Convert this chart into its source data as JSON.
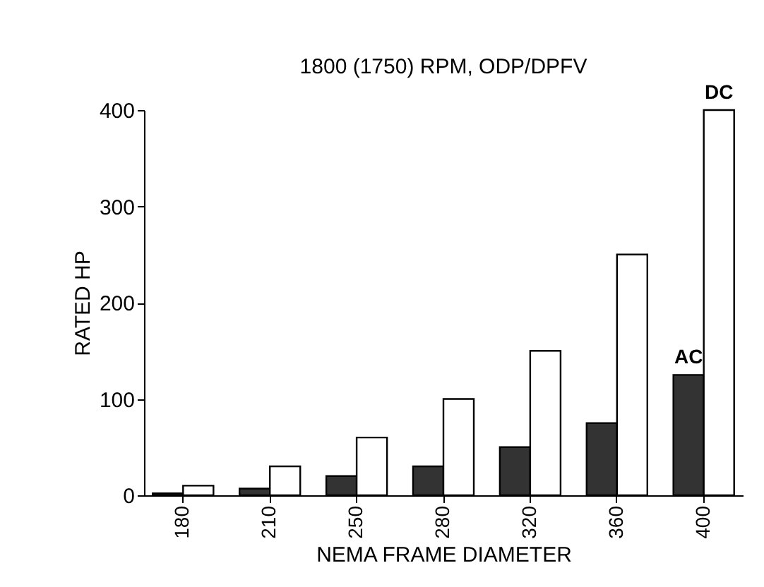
{
  "chart_data": {
    "type": "bar",
    "title": "1800 (1750) RPM, ODP/DPFV",
    "xlabel": "NEMA FRAME DIAMETER",
    "ylabel": "RATED HP",
    "categories": [
      "180",
      "210",
      "250",
      "280",
      "320",
      "360",
      "400"
    ],
    "series": [
      {
        "name": "AC",
        "color": "#333333",
        "values": [
          2,
          7,
          20,
          30,
          50,
          75,
          125
        ]
      },
      {
        "name": "DC",
        "color": "#ffffff",
        "values": [
          10,
          30,
          60,
          100,
          150,
          250,
          400
        ]
      }
    ],
    "ylim": [
      0,
      400
    ],
    "yticks": [
      0,
      100,
      200,
      300,
      400
    ],
    "grid": false,
    "legend": false
  }
}
